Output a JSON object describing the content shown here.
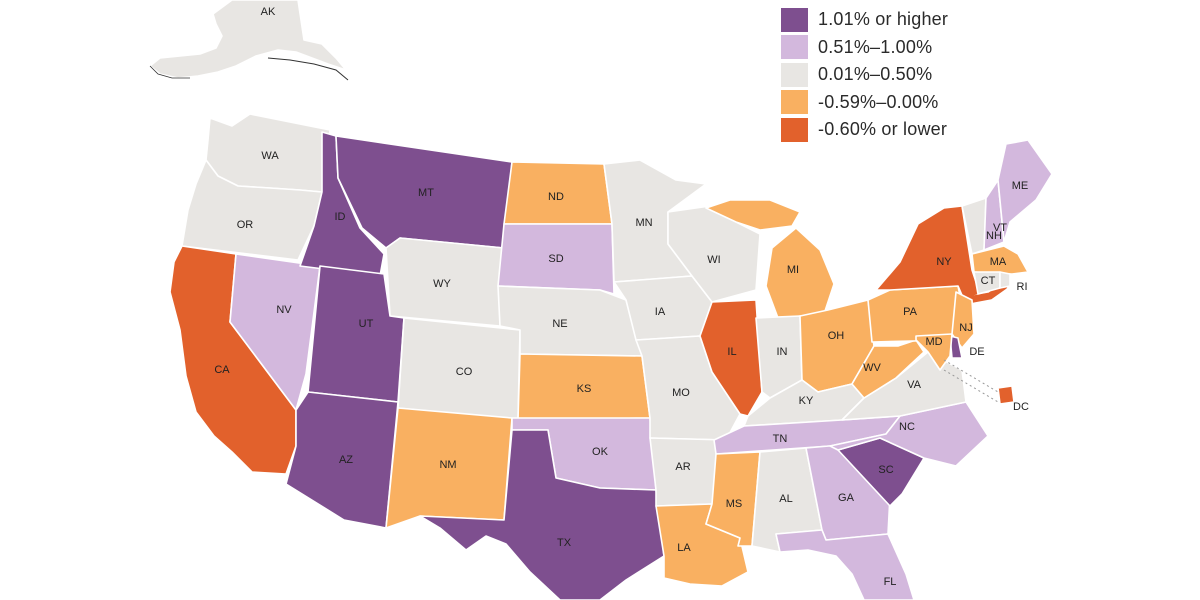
{
  "legend": {
    "items": [
      {
        "key": "high",
        "label": "1.01% or higher",
        "color": "#7e4f8f"
      },
      {
        "key": "midhigh",
        "label": "0.51%–1.00%",
        "color": "#d3b8dd"
      },
      {
        "key": "neutral",
        "label": "0.01%–0.50%",
        "color": "#e8e6e3"
      },
      {
        "key": "midlow",
        "label": "-0.59%–0.00%",
        "color": "#f9b061"
      },
      {
        "key": "low",
        "label": "-0.60% or lower",
        "color": "#e2612c"
      }
    ]
  },
  "states": [
    {
      "abbr": "AK",
      "category": "neutral"
    },
    {
      "abbr": "WA",
      "category": "neutral"
    },
    {
      "abbr": "OR",
      "category": "neutral"
    },
    {
      "abbr": "CA",
      "category": "low"
    },
    {
      "abbr": "NV",
      "category": "midhigh"
    },
    {
      "abbr": "ID",
      "category": "high"
    },
    {
      "abbr": "MT",
      "category": "high"
    },
    {
      "abbr": "WY",
      "category": "neutral"
    },
    {
      "abbr": "UT",
      "category": "high"
    },
    {
      "abbr": "AZ",
      "category": "high"
    },
    {
      "abbr": "CO",
      "category": "neutral"
    },
    {
      "abbr": "NM",
      "category": "midlow"
    },
    {
      "abbr": "ND",
      "category": "midlow"
    },
    {
      "abbr": "SD",
      "category": "midhigh"
    },
    {
      "abbr": "NE",
      "category": "neutral"
    },
    {
      "abbr": "KS",
      "category": "midlow"
    },
    {
      "abbr": "OK",
      "category": "midhigh"
    },
    {
      "abbr": "TX",
      "category": "high"
    },
    {
      "abbr": "MN",
      "category": "neutral"
    },
    {
      "abbr": "IA",
      "category": "neutral"
    },
    {
      "abbr": "MO",
      "category": "neutral"
    },
    {
      "abbr": "AR",
      "category": "neutral"
    },
    {
      "abbr": "LA",
      "category": "midlow"
    },
    {
      "abbr": "WI",
      "category": "neutral"
    },
    {
      "abbr": "IL",
      "category": "low"
    },
    {
      "abbr": "MI",
      "category": "midlow"
    },
    {
      "abbr": "IN",
      "category": "neutral"
    },
    {
      "abbr": "OH",
      "category": "midlow"
    },
    {
      "abbr": "KY",
      "category": "neutral"
    },
    {
      "abbr": "TN",
      "category": "midhigh"
    },
    {
      "abbr": "MS",
      "category": "midlow"
    },
    {
      "abbr": "AL",
      "category": "neutral"
    },
    {
      "abbr": "GA",
      "category": "midhigh"
    },
    {
      "abbr": "FL",
      "category": "midhigh"
    },
    {
      "abbr": "SC",
      "category": "high"
    },
    {
      "abbr": "NC",
      "category": "midhigh"
    },
    {
      "abbr": "VA",
      "category": "neutral"
    },
    {
      "abbr": "WV",
      "category": "midlow"
    },
    {
      "abbr": "PA",
      "category": "midlow"
    },
    {
      "abbr": "NY",
      "category": "low"
    },
    {
      "abbr": "VT",
      "category": "neutral"
    },
    {
      "abbr": "NH",
      "category": "midhigh"
    },
    {
      "abbr": "ME",
      "category": "midhigh"
    },
    {
      "abbr": "MA",
      "category": "midlow"
    },
    {
      "abbr": "RI",
      "category": "neutral"
    },
    {
      "abbr": "CT",
      "category": "neutral"
    },
    {
      "abbr": "NJ",
      "category": "midlow"
    },
    {
      "abbr": "DE",
      "category": "high"
    },
    {
      "abbr": "MD",
      "category": "midlow"
    },
    {
      "abbr": "DC",
      "category": "low"
    }
  ]
}
